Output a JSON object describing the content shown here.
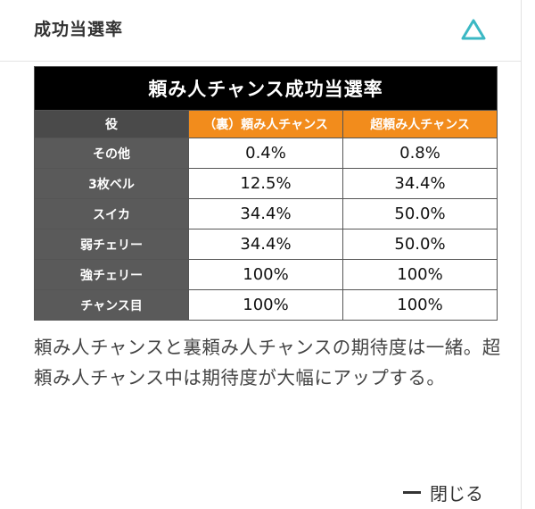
{
  "section": {
    "title": "成功当選率",
    "collapse_icon": "triangle-up-icon",
    "accent_color": "#3bb8c4"
  },
  "table": {
    "title": "頼み人チャンス成功当選率",
    "role_header": "役",
    "columns": [
      "（裏）頼み人チャンス",
      "超頼み人チャンス"
    ],
    "rows": [
      {
        "role": "その他",
        "values": [
          "0.4%",
          "0.8%"
        ]
      },
      {
        "role": "3枚ベル",
        "values": [
          "12.5%",
          "34.4%"
        ]
      },
      {
        "role": "スイカ",
        "values": [
          "34.4%",
          "50.0%"
        ]
      },
      {
        "role": "弱チェリー",
        "values": [
          "34.4%",
          "50.0%"
        ]
      },
      {
        "role": "強チェリー",
        "values": [
          "100%",
          "100%"
        ]
      },
      {
        "role": "チャンス目",
        "values": [
          "100%",
          "100%"
        ]
      }
    ],
    "header_color": "#f28c1c"
  },
  "description": "頼み人チャンスと裏頼み人チャンスの期待度は一緒。超頼み人チャンス中は期待度が大幅にアップする。",
  "close_label": "閉じる"
}
